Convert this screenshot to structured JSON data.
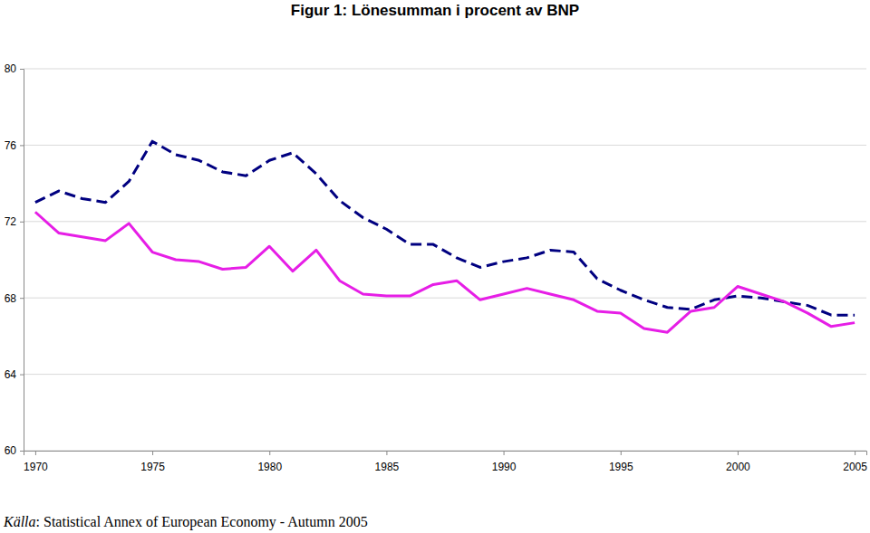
{
  "chart_data": {
    "type": "line",
    "title": "Figur 1: Lönesumman i procent av BNP",
    "source": "Källa: Statistical Annex of European Economy - Autumn 2005",
    "x": [
      1970,
      1971,
      1972,
      1973,
      1974,
      1975,
      1976,
      1977,
      1978,
      1979,
      1980,
      1981,
      1982,
      1983,
      1984,
      1985,
      1986,
      1987,
      1988,
      1989,
      1990,
      1991,
      1992,
      1993,
      1994,
      1995,
      1996,
      1997,
      1998,
      1999,
      2000,
      2001,
      2002,
      2003,
      2004,
      2005
    ],
    "xlim": [
      1969.5,
      2005.5
    ],
    "xticks": [
      1970,
      1975,
      1980,
      1985,
      1990,
      1995,
      2000,
      2005
    ],
    "ylim": [
      60,
      80
    ],
    "yticks": [
      60,
      64,
      68,
      72,
      76,
      80
    ],
    "grid": true,
    "series": [
      {
        "color": "#000080",
        "line_style": "dashed",
        "values": [
          73.0,
          73.6,
          73.2,
          73.0,
          74.1,
          76.2,
          75.5,
          75.2,
          74.6,
          74.4,
          75.2,
          75.6,
          74.5,
          73.1,
          72.2,
          71.6,
          70.8,
          70.8,
          70.1,
          69.6,
          69.9,
          70.1,
          70.5,
          70.4,
          69.0,
          68.4,
          67.9,
          67.5,
          67.4,
          67.9,
          68.1,
          68.0,
          67.8,
          67.6,
          67.1,
          67.1
        ]
      },
      {
        "color": "#e61ee6",
        "line_style": "solid",
        "values": [
          72.5,
          71.4,
          71.2,
          71.0,
          71.9,
          70.4,
          70.0,
          69.9,
          69.5,
          69.6,
          70.7,
          69.4,
          70.5,
          68.9,
          68.2,
          68.1,
          68.1,
          68.7,
          68.9,
          67.9,
          68.2,
          68.5,
          68.2,
          67.9,
          67.3,
          67.2,
          66.4,
          66.2,
          67.3,
          67.5,
          68.6,
          68.2,
          67.8,
          67.2,
          66.5,
          66.7
        ]
      }
    ]
  }
}
